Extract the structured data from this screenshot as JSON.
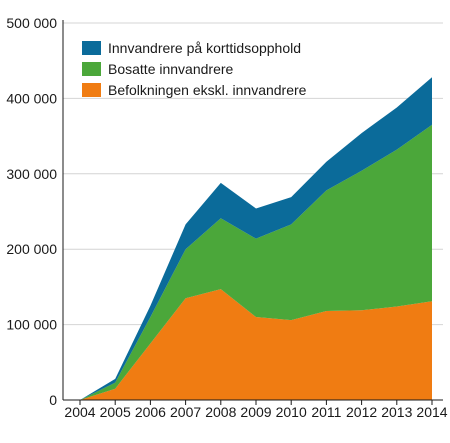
{
  "chart_data": {
    "type": "area",
    "stacked": true,
    "x": [
      "2004",
      "2005",
      "2006",
      "2007",
      "2008",
      "2009",
      "2010",
      "2011",
      "2012",
      "2013",
      "2014"
    ],
    "series": [
      {
        "name": "Befolkningen ekskl. innvandrere",
        "color": "#f07c12",
        "values": [
          0,
          15000,
          75000,
          135000,
          147000,
          110000,
          106000,
          118000,
          119000,
          124000,
          131000
        ]
      },
      {
        "name": "Bosatte innvandrere",
        "color": "#4ba73a",
        "values": [
          0,
          8000,
          35000,
          65000,
          94000,
          104000,
          127000,
          160000,
          185000,
          208000,
          234000
        ]
      },
      {
        "name": "Innvandrere på korttidsopphold",
        "color": "#0b6b9a",
        "values": [
          0,
          5000,
          15000,
          33000,
          47000,
          40000,
          36000,
          38000,
          50000,
          56000,
          63000
        ]
      }
    ],
    "ylim": [
      0,
      500000
    ],
    "yticks": [
      0,
      100000,
      200000,
      300000,
      400000,
      500000
    ],
    "ytick_labels": [
      "0",
      "100 000",
      "200 000",
      "300 000",
      "400 000",
      "500 000"
    ],
    "grid": true,
    "legend_position": "top-left",
    "legend_order": [
      "Innvandrere på korttidsopphold",
      "Bosatte innvandrere",
      "Befolkningen ekskl. innvandrere"
    ]
  }
}
